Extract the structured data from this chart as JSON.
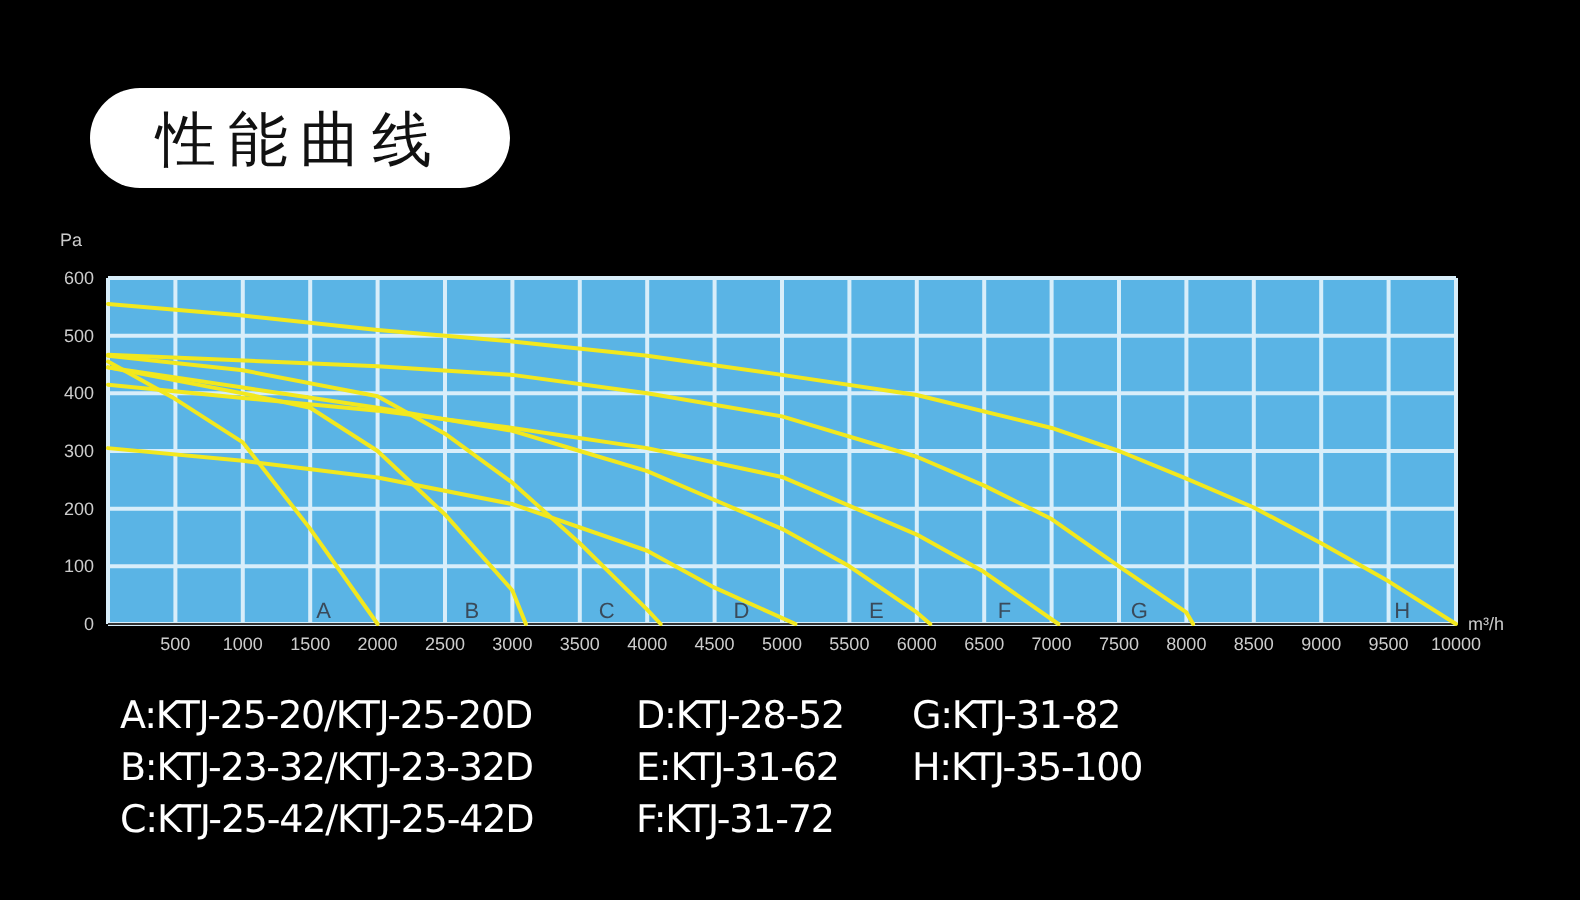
{
  "chart_data": {
    "type": "line",
    "title": "性能曲线",
    "xlabel": "m³/h",
    "ylabel": "Pa",
    "xlim": [
      0,
      10000
    ],
    "ylim": [
      0,
      600
    ],
    "xticks": [
      {
        "value": 0,
        "label": null
      },
      500,
      1000,
      1500,
      2000,
      2500,
      3000,
      3500,
      4000,
      4500,
      5000,
      5500,
      6000,
      6500,
      7000,
      7500,
      8000,
      8500,
      9000,
      9500,
      10000
    ],
    "yticks": [
      0,
      100,
      200,
      300,
      400,
      500,
      600
    ],
    "grid": true,
    "marker": "none",
    "line_style": "solid",
    "series": [
      {
        "name": "A",
        "color": "#f2e81e",
        "x": [
          0,
          500,
          1000,
          1500,
          2000
        ],
        "values": [
          455,
          390,
          315,
          165,
          0
        ]
      },
      {
        "name": "B",
        "color": "#f2e81e",
        "x": [
          0,
          1000,
          1500,
          2000,
          2500,
          3000,
          3100
        ],
        "values": [
          445,
          400,
          375,
          300,
          190,
          58,
          0
        ]
      },
      {
        "name": "C",
        "color": "#f2e81e",
        "x": [
          0,
          1000,
          2000,
          2500,
          3000,
          3500,
          4000,
          4100
        ],
        "values": [
          465,
          440,
          395,
          330,
          245,
          140,
          25,
          0
        ]
      },
      {
        "name": "D",
        "color": "#f2e81e",
        "x": [
          0,
          1000,
          2000,
          3000,
          4000,
          4500,
          5100
        ],
        "values": [
          305,
          283,
          254,
          208,
          127,
          63,
          0
        ]
      },
      {
        "name": "E",
        "color": "#f2e81e",
        "x": [
          0,
          1000,
          2000,
          3000,
          3500,
          4000,
          4500,
          5000,
          5500,
          6000,
          6100
        ],
        "values": [
          445,
          410,
          375,
          335,
          300,
          265,
          215,
          165,
          100,
          20,
          0
        ]
      },
      {
        "name": "F",
        "color": "#f2e81e",
        "x": [
          0,
          1000,
          2000,
          3000,
          4000,
          5000,
          6000,
          6500,
          7050
        ],
        "values": [
          415,
          392,
          370,
          340,
          305,
          255,
          155,
          90,
          0
        ]
      },
      {
        "name": "G",
        "color": "#f2e81e",
        "x": [
          0,
          2000,
          3000,
          4000,
          5000,
          6000,
          6500,
          7000,
          7500,
          8000,
          8050
        ],
        "values": [
          467,
          447,
          432,
          400,
          360,
          290,
          240,
          182,
          100,
          20,
          0
        ]
      },
      {
        "name": "H",
        "color": "#f2e81e",
        "x": [
          0,
          1000,
          2000,
          3000,
          4000,
          5000,
          6000,
          7000,
          7500,
          8000,
          8500,
          9000,
          9500,
          10000
        ],
        "values": [
          555,
          535,
          510,
          490,
          465,
          432,
          397,
          340,
          300,
          252,
          202,
          140,
          74,
          0
        ]
      }
    ],
    "annotations": [
      "A:KTJ-25-20/KTJ-25-20D",
      "B:KTJ-23-32/KTJ-23-32D",
      "C:KTJ-25-42/KTJ-25-42D",
      "D:KTJ-28-52",
      "E:KTJ-31-62",
      "F:KTJ-31-72",
      "G:KTJ-31-82",
      "H:KTJ-35-100"
    ]
  }
}
